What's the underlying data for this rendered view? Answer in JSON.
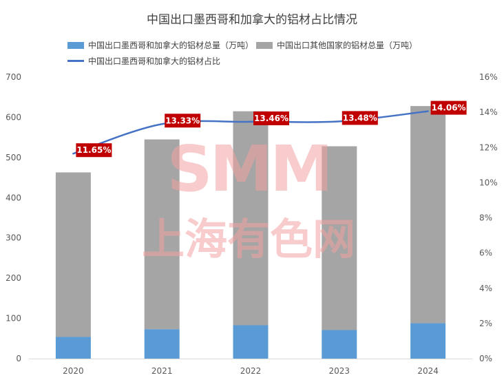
{
  "chart_data": {
    "type": "bar+line",
    "title": "中国出口墨西哥和加拿大的铝材占比情况",
    "categories": [
      "2020",
      "2021",
      "2022",
      "2023",
      "2024"
    ],
    "series": [
      {
        "name": "中国出口墨西哥和加拿大的铝材总量（万吨）",
        "type": "stacked-bar",
        "axis": "left",
        "color": "#5b9bd5",
        "values": [
          54,
          73,
          83,
          71,
          88
        ]
      },
      {
        "name": "中国出口其他国家的铝材总量（万吨）",
        "type": "stacked-bar",
        "axis": "left",
        "color": "#a5a5a5",
        "values": [
          409,
          472,
          532,
          457,
          540
        ]
      },
      {
        "name": "中国出口墨西哥和加拿大的铝材占比",
        "type": "line",
        "axis": "right",
        "color": "#4472c4",
        "values": [
          11.65,
          13.33,
          13.46,
          13.48,
          14.06
        ],
        "labels": [
          "11.65%",
          "13.33%",
          "13.46%",
          "13.48%",
          "14.06%"
        ]
      }
    ],
    "y_left": {
      "min": 0,
      "max": 700,
      "ticks": [
        "0",
        "100",
        "200",
        "300",
        "400",
        "500",
        "600",
        "700"
      ]
    },
    "y_right": {
      "min": 0,
      "max": 16,
      "ticks": [
        "0%",
        "2%",
        "4%",
        "6%",
        "8%",
        "10%",
        "12%",
        "14%",
        "16%"
      ]
    },
    "grid": false,
    "legend_position": "top",
    "data_label_color": "#c00000"
  },
  "watermark": {
    "top": "SMM",
    "bottom": "上海有色网"
  }
}
